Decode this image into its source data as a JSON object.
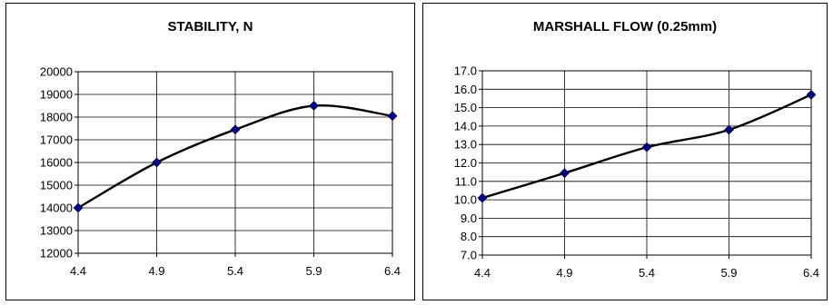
{
  "chart_data": [
    {
      "type": "line",
      "title": "STABILITY, N",
      "x": [
        4.4,
        4.9,
        5.4,
        5.9,
        6.4
      ],
      "xticks": [
        "4.4",
        "4.9",
        "5.4",
        "5.9",
        "6.4"
      ],
      "xlim": [
        4.4,
        6.4
      ],
      "ylim": [
        12000,
        20000
      ],
      "yticks": [
        "12000",
        "13000",
        "14000",
        "15000",
        "16000",
        "17000",
        "18000",
        "19000",
        "20000"
      ],
      "series": [
        {
          "values": [
            14000,
            16000,
            17450,
            18500,
            18050
          ],
          "color": "#000080"
        }
      ],
      "grid": true,
      "smooth": true
    },
    {
      "type": "line",
      "title": "MARSHALL FLOW (0.25mm)",
      "x": [
        4.4,
        4.9,
        5.4,
        5.9,
        6.4
      ],
      "xticks": [
        "4.4",
        "4.9",
        "5.4",
        "5.9",
        "6.4"
      ],
      "xlim": [
        4.4,
        6.4
      ],
      "ylim": [
        7.0,
        17.0
      ],
      "yticks": [
        "7.0",
        "8.0",
        "9.0",
        "10.0",
        "11.0",
        "12.0",
        "13.0",
        "14.0",
        "15.0",
        "16.0",
        "17.0"
      ],
      "series": [
        {
          "values": [
            10.1,
            11.45,
            12.85,
            13.8,
            15.7
          ],
          "color": "#000080"
        }
      ],
      "grid": true,
      "smooth": true
    }
  ]
}
